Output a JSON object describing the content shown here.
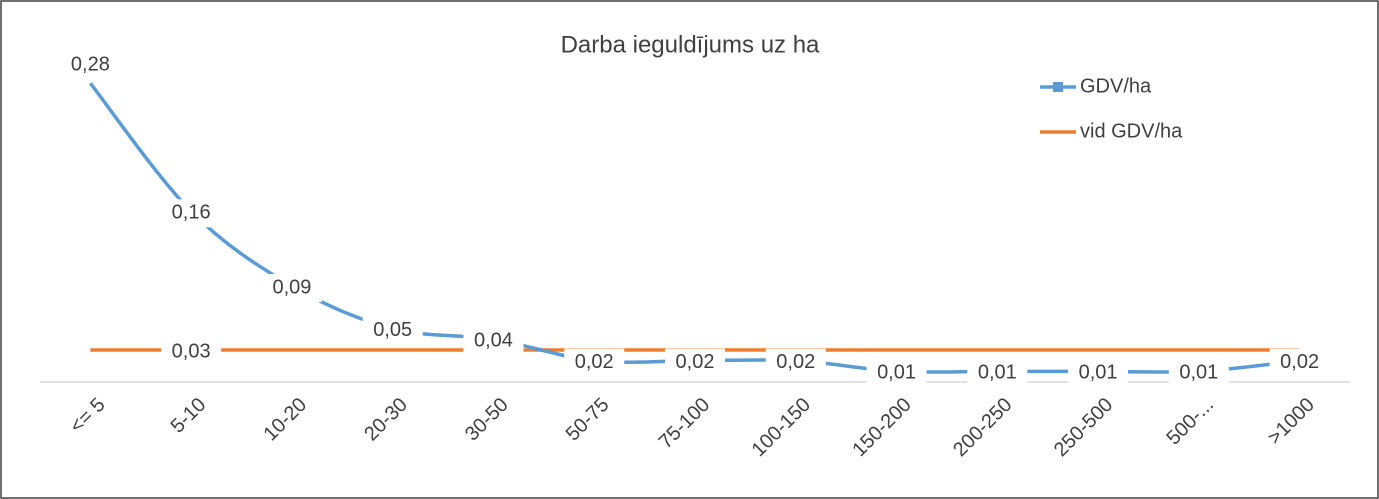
{
  "chart_data": {
    "type": "line",
    "title": "Darba ieguldījums uz ha",
    "categories": [
      "<= 5",
      "5-10",
      "10-20",
      "20-30",
      "30-50",
      "50-75",
      "75-100",
      "100-150",
      "150-200",
      "200-250",
      "250-500",
      "500-...",
      ">1000"
    ],
    "series": [
      {
        "name": "GDV/ha",
        "color": "#5b9bd5",
        "marker": "square",
        "smooth": true,
        "values": [
          0.28,
          0.16,
          0.09,
          0.05,
          0.04,
          0.02,
          0.02,
          0.02,
          0.01,
          0.01,
          0.01,
          0.01,
          0.02
        ],
        "value_labels": [
          "0,28",
          "0,16",
          "0,09",
          "0,05",
          "0,04",
          "0,02",
          "0,02",
          "0,02",
          "0,01",
          "0,01",
          "0,01",
          "0,01",
          "0,02"
        ]
      },
      {
        "name": "vid GDV/ha",
        "color": "#ed7d31",
        "values": [
          0.03,
          0.03,
          0.03,
          0.03,
          0.03,
          0.03,
          0.03,
          0.03,
          0.03,
          0.03,
          0.03,
          0.03,
          0.03
        ],
        "value_labels": [
          null,
          "0,03",
          null,
          null,
          null,
          null,
          null,
          null,
          null,
          null,
          null,
          null,
          null
        ]
      }
    ],
    "ylim": [
      0,
      0.3
    ],
    "legend": "top-right"
  }
}
